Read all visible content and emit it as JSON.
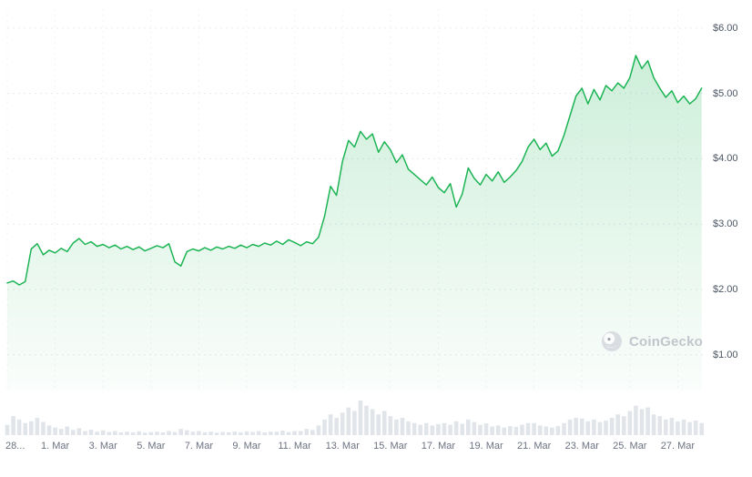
{
  "watermark": {
    "text": "CoinGecko"
  },
  "colors": {
    "line": "#1cb454",
    "area_top": "rgba(28,180,84,0.22)",
    "area_bottom": "rgba(28,180,84,0.02)",
    "volume_bar": "#e1e5ea",
    "grid": "#e7eaee",
    "grid_vertical": "#f1f3f5",
    "y_label": "#4b5563",
    "x_label": "#6b7280",
    "watermark_text": "#c0c6cc"
  },
  "chart_data": {
    "type": "line",
    "title": "",
    "legend": "none",
    "grid": {
      "horizontal": true,
      "vertical": true,
      "style": "dotted"
    },
    "ylim": [
      0.44,
      6.29
    ],
    "xlim": [
      0,
      29.2
    ],
    "y_axis": {
      "side": "right",
      "ticks": [
        {
          "value": 6,
          "label": "$6.00"
        },
        {
          "value": 5,
          "label": "$5.00"
        },
        {
          "value": 4,
          "label": "$4.00"
        },
        {
          "value": 3,
          "label": "$3.00"
        },
        {
          "value": 2,
          "label": "$2.00"
        },
        {
          "value": 1,
          "label": "$1.00"
        }
      ]
    },
    "x_axis": {
      "unit": "days since 28 Feb",
      "ticks": [
        {
          "day": 0,
          "label": "28..."
        },
        {
          "day": 2,
          "label": "1. Mar"
        },
        {
          "day": 4,
          "label": "3. Mar"
        },
        {
          "day": 6,
          "label": "5. Mar"
        },
        {
          "day": 8,
          "label": "7. Mar"
        },
        {
          "day": 10,
          "label": "9. Mar"
        },
        {
          "day": 12,
          "label": "11. Mar"
        },
        {
          "day": 14,
          "label": "13. Mar"
        },
        {
          "day": 16,
          "label": "15. Mar"
        },
        {
          "day": 18,
          "label": "17. Mar"
        },
        {
          "day": 20,
          "label": "19. Mar"
        },
        {
          "day": 22,
          "label": "21. Mar"
        },
        {
          "day": 24,
          "label": "23. Mar"
        },
        {
          "day": 26,
          "label": "25. Mar"
        },
        {
          "day": 28,
          "label": "27. Mar"
        }
      ]
    },
    "series": [
      {
        "name": "price_usd",
        "x_start": 0,
        "x_step": 0.25,
        "values": [
          2.1,
          2.13,
          2.07,
          2.12,
          2.62,
          2.7,
          2.53,
          2.6,
          2.56,
          2.63,
          2.58,
          2.71,
          2.78,
          2.69,
          2.73,
          2.66,
          2.69,
          2.64,
          2.68,
          2.62,
          2.66,
          2.61,
          2.65,
          2.59,
          2.63,
          2.67,
          2.64,
          2.7,
          2.42,
          2.36,
          2.58,
          2.62,
          2.59,
          2.64,
          2.6,
          2.65,
          2.62,
          2.66,
          2.63,
          2.68,
          2.64,
          2.69,
          2.66,
          2.71,
          2.68,
          2.74,
          2.69,
          2.76,
          2.72,
          2.67,
          2.73,
          2.7,
          2.8,
          3.12,
          3.58,
          3.44,
          3.96,
          4.28,
          4.18,
          4.42,
          4.3,
          4.38,
          4.1,
          4.26,
          4.14,
          3.94,
          4.06,
          3.84,
          3.76,
          3.68,
          3.6,
          3.72,
          3.56,
          3.48,
          3.62,
          3.26,
          3.46,
          3.86,
          3.7,
          3.6,
          3.76,
          3.66,
          3.8,
          3.64,
          3.72,
          3.82,
          3.96,
          4.18,
          4.3,
          4.14,
          4.24,
          4.04,
          4.12,
          4.36,
          4.66,
          4.96,
          5.08,
          4.84,
          5.06,
          4.9,
          5.12,
          5.04,
          5.16,
          5.08,
          5.24,
          5.58,
          5.38,
          5.5,
          5.24,
          5.08,
          4.94,
          5.04,
          4.86,
          4.96,
          4.84,
          4.92,
          5.08
        ]
      }
    ],
    "volume": {
      "name": "volume_relative",
      "x_start": 0,
      "x_step": 0.25,
      "values": [
        0.3,
        0.55,
        0.45,
        0.35,
        0.4,
        0.5,
        0.38,
        0.28,
        0.22,
        0.18,
        0.25,
        0.15,
        0.2,
        0.12,
        0.16,
        0.1,
        0.14,
        0.09,
        0.12,
        0.08,
        0.1,
        0.08,
        0.11,
        0.07,
        0.09,
        0.1,
        0.08,
        0.12,
        0.09,
        0.18,
        0.14,
        0.1,
        0.12,
        0.08,
        0.1,
        0.07,
        0.09,
        0.08,
        0.1,
        0.08,
        0.11,
        0.09,
        0.12,
        0.08,
        0.1,
        0.1,
        0.13,
        0.09,
        0.12,
        0.12,
        0.18,
        0.15,
        0.28,
        0.45,
        0.6,
        0.5,
        0.65,
        0.8,
        0.7,
        1.0,
        0.85,
        0.75,
        0.6,
        0.7,
        0.55,
        0.45,
        0.5,
        0.4,
        0.35,
        0.3,
        0.35,
        0.28,
        0.32,
        0.35,
        0.3,
        0.4,
        0.33,
        0.45,
        0.38,
        0.3,
        0.34,
        0.25,
        0.28,
        0.22,
        0.26,
        0.24,
        0.3,
        0.35,
        0.35,
        0.28,
        0.25,
        0.22,
        0.26,
        0.35,
        0.45,
        0.5,
        0.48,
        0.4,
        0.45,
        0.38,
        0.42,
        0.5,
        0.6,
        0.55,
        0.7,
        0.85,
        0.75,
        0.8,
        0.6,
        0.55,
        0.45,
        0.5,
        0.4,
        0.45,
        0.38,
        0.42,
        0.35
      ]
    }
  }
}
